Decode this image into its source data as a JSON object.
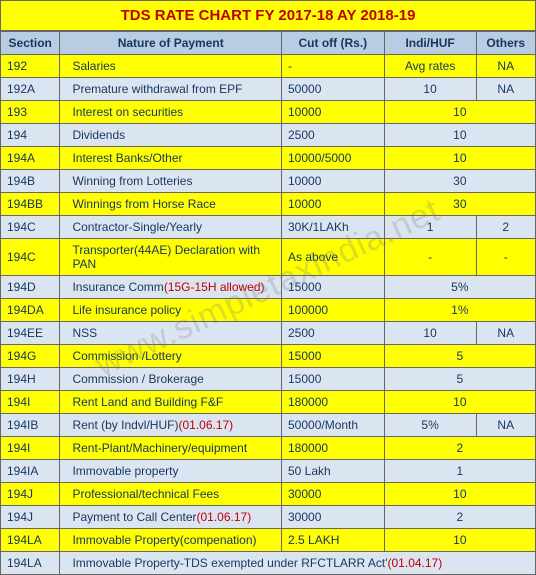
{
  "title": "TDS RATE CHART FY 2017-18 AY 2018-19",
  "watermark": "www.simpletaxindia.net",
  "columns": [
    "Section",
    "Nature of Payment",
    "Cut off (Rs.)",
    "Indi/HUF",
    "Others"
  ],
  "rows": [
    {
      "s": "192",
      "n": "Salaries",
      "c": "-",
      "i": "Avg rates",
      "o": "NA",
      "span": false
    },
    {
      "s": "192A",
      "n": "Premature withdrawal from EPF",
      "c": "50000",
      "i": "10",
      "o": "NA",
      "span": false
    },
    {
      "s": "193",
      "n": "Interest on securities",
      "c": "10000",
      "i": "10",
      "o": "",
      "span": true
    },
    {
      "s": "194",
      "n": "Dividends",
      "c": "2500",
      "i": "10",
      "o": "",
      "span": true
    },
    {
      "s": "194A",
      "n": "Interest Banks/Other",
      "c": "10000/5000",
      "i": "10",
      "o": "",
      "span": true
    },
    {
      "s": "194B",
      "n": "Winning from Lotteries",
      "c": "10000",
      "i": "30",
      "o": "",
      "span": true
    },
    {
      "s": "194BB",
      "n": "Winnings from Horse Race",
      "c": "10000",
      "i": "30",
      "o": "",
      "span": true
    },
    {
      "s": "194C",
      "n": "Contractor-Single/Yearly",
      "c": "30K/1LAKh",
      "i": "1",
      "o": "2",
      "span": false
    },
    {
      "s": "194C",
      "n": "Transporter(44AE) Declaration with PAN",
      "c": "As above",
      "i": "-",
      "o": "-",
      "span": false
    },
    {
      "s": "194D",
      "n": "Insurance Comm",
      "red": "(15G-15H allowed)",
      "c": "15000",
      "i": "5%",
      "o": "",
      "span": true
    },
    {
      "s": "194DA",
      "n": "Life insurance policy",
      "c": "100000",
      "i": "1%",
      "o": "",
      "span": true
    },
    {
      "s": "194EE",
      "n": "NSS",
      "c": "2500",
      "i": "10",
      "o": "NA",
      "span": false
    },
    {
      "s": "194G",
      "n": "Commission /Lottery",
      "c": "15000",
      "i": "5",
      "o": "",
      "span": true
    },
    {
      "s": "194H",
      "n": "Commission / Brokerage",
      "c": "15000",
      "i": "5",
      "o": "",
      "span": true
    },
    {
      "s": "194I",
      "n": "Rent Land and Building F&F",
      "c": "180000",
      "i": "10",
      "o": "",
      "span": true
    },
    {
      "s": "194IB",
      "n": "Rent (by Indvl/HUF)",
      "red": "(01.06.17)",
      "c": "50000/Month",
      "i": "5%",
      "o": "NA",
      "span": false
    },
    {
      "s": "194I",
      "n": "Rent-Plant/Machinery/equipment",
      "c": "180000",
      "i": "2",
      "o": "",
      "span": true
    },
    {
      "s": "194IA",
      "n": "Immovable property",
      "c": "50 Lakh",
      "i": "1",
      "o": "",
      "span": true
    },
    {
      "s": "194J",
      "n": "Professional/technical Fees",
      "c": "30000",
      "i": "10",
      "o": "",
      "span": true
    },
    {
      "s": "194J",
      "n": "Payment to Call Center",
      "red": "(01.06.17)",
      "c": "30000",
      "i": "2",
      "o": "",
      "span": true
    },
    {
      "s": "194LA",
      "n": "Immovable Property(compenation)",
      "c": "2.5 LAKH",
      "i": "10",
      "o": "",
      "span": true
    },
    {
      "s": "194LA",
      "full": "Immovable Property-TDS exempted under RFCTLARR Act'",
      "fullred": "(01.04.17)"
    }
  ]
}
